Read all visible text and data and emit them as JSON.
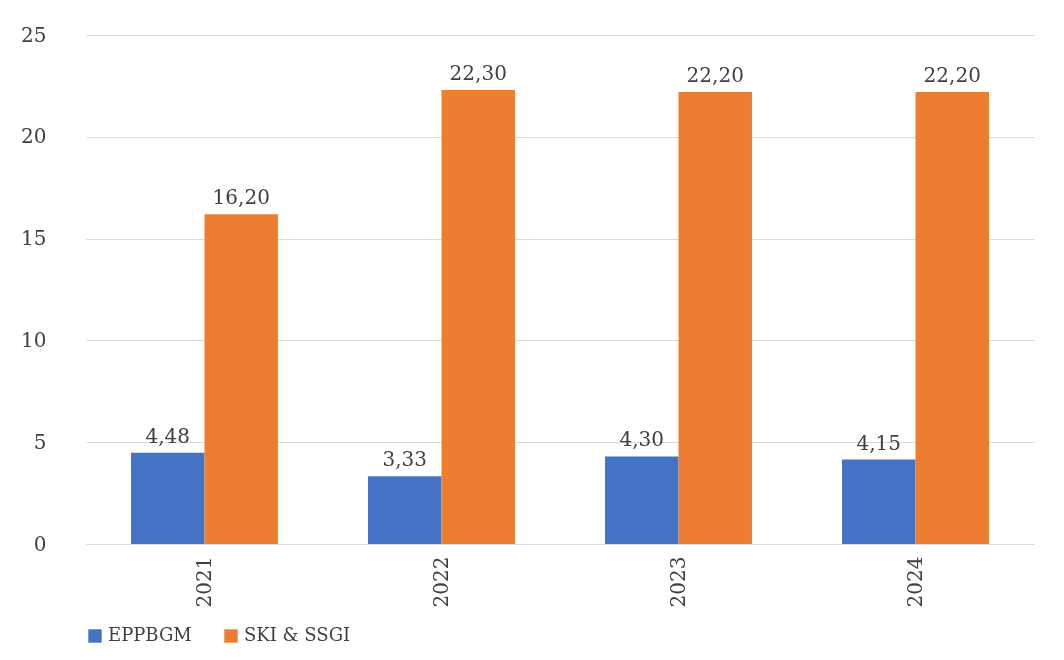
{
  "chart_data": {
    "type": "bar",
    "categories": [
      "2021",
      "2022",
      "2023",
      "2024"
    ],
    "series": [
      {
        "name": "EPPBGM",
        "color": "#4472c4",
        "values": [
          4.48,
          3.33,
          4.3,
          4.15
        ],
        "value_labels": [
          "4,48",
          "3,33",
          "4,30",
          "4,15"
        ]
      },
      {
        "name": "SKI & SSGI",
        "color": "#ed7d31",
        "values": [
          16.2,
          22.3,
          22.2,
          22.2
        ],
        "value_labels": [
          "16,20",
          "22,30",
          "22,20",
          "22,20"
        ]
      }
    ],
    "ylim": [
      0,
      25
    ],
    "yticks": [
      0,
      5,
      10,
      15,
      20,
      25
    ],
    "grid": "y",
    "legend": "bottom"
  }
}
